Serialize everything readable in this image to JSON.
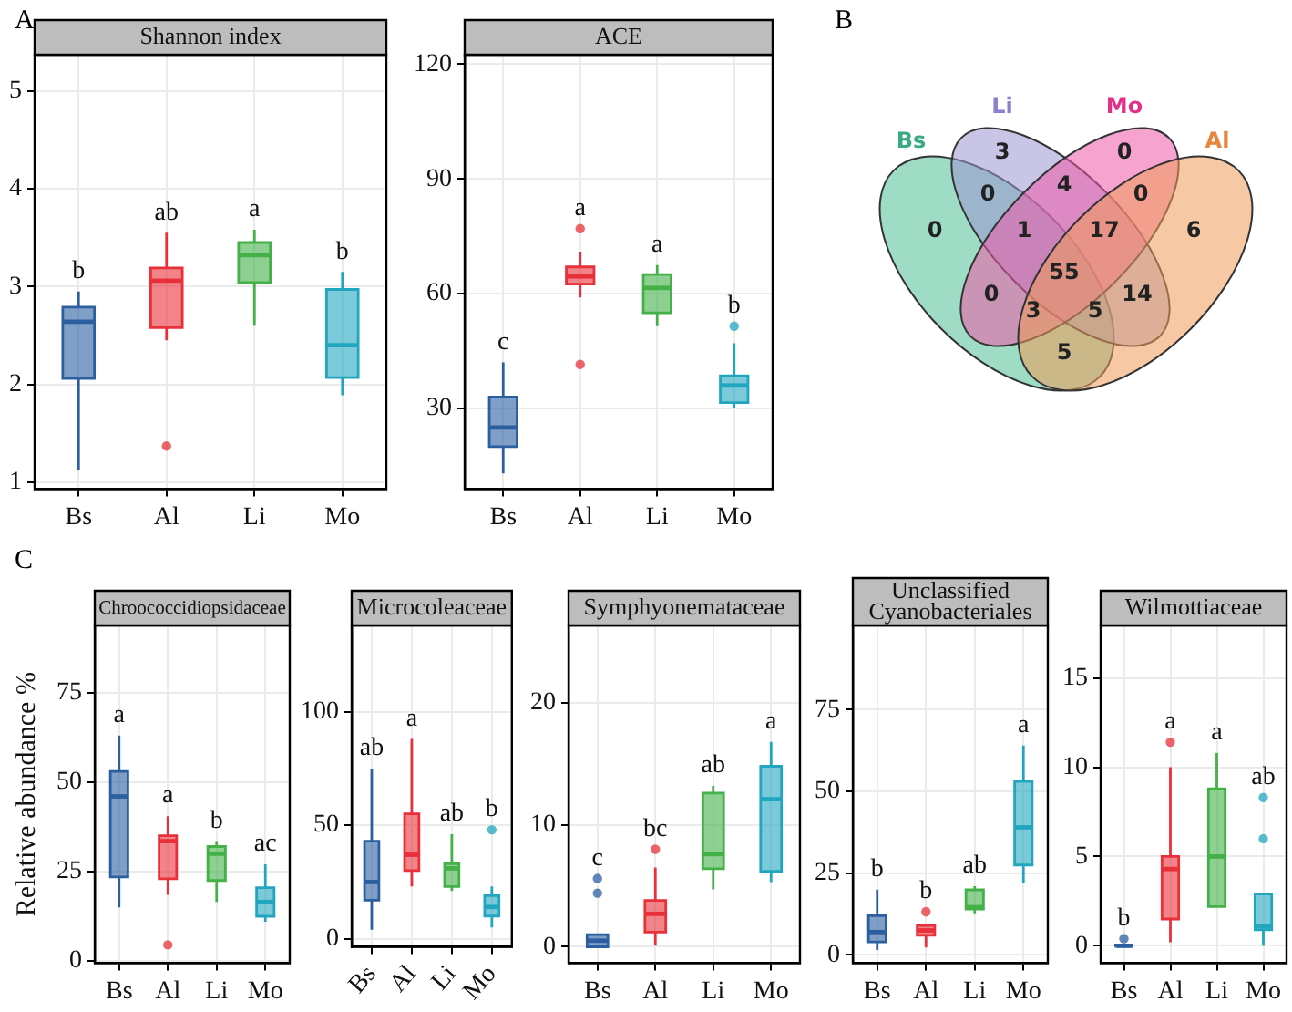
{
  "chart_data": [
    {
      "type": "box",
      "title": "Shannon index",
      "annotations": [
        "A",
        "b",
        "ab",
        "a",
        "b"
      ],
      "categories": [
        "Bs",
        "Al",
        "Li",
        "Mo"
      ],
      "colors": [
        "#2b5fa0",
        "#e8303a",
        "#43b048",
        "#22a6bf"
      ],
      "boxes": [
        {
          "low": 1.13,
          "q1": 2.06,
          "median": 2.64,
          "q3": 2.79,
          "high": 2.95
        },
        {
          "low": 2.45,
          "q1": 2.58,
          "median": 3.06,
          "q3": 3.19,
          "high": 3.55,
          "outliers": [
            1.37
          ]
        },
        {
          "low": 2.6,
          "q1": 3.04,
          "median": 3.32,
          "q3": 3.45,
          "high": 3.58
        },
        {
          "low": 1.89,
          "q1": 2.07,
          "median": 2.4,
          "q3": 2.97,
          "high": 3.15
        }
      ],
      "ylim": [
        0.93,
        5.37
      ],
      "yticks": [
        1,
        2,
        3,
        4,
        5
      ],
      "grid": true
    },
    {
      "type": "box",
      "title": "ACE",
      "annotations": [
        "c",
        "a",
        "a",
        "b"
      ],
      "categories": [
        "Bs",
        "Al",
        "Li",
        "Mo"
      ],
      "colors": [
        "#2b5fa0",
        "#e8303a",
        "#43b048",
        "#22a6bf"
      ],
      "boxes": [
        {
          "low": 13,
          "q1": 20,
          "median": 25,
          "q3": 33,
          "high": 42
        },
        {
          "low": 59,
          "q1": 62.5,
          "median": 64.5,
          "q3": 67,
          "high": 71,
          "outliers": [
            77,
            41.5
          ]
        },
        {
          "low": 51.5,
          "q1": 55,
          "median": 61.5,
          "q3": 65,
          "high": 67.5
        },
        {
          "low": 30,
          "q1": 31.5,
          "median": 36,
          "q3": 38.5,
          "high": 47,
          "outliers": [
            51.5
          ]
        }
      ],
      "ylim": [
        8.9,
        122.5
      ],
      "yticks": [
        30,
        60,
        90,
        120
      ],
      "grid": true
    },
    {
      "type": "other",
      "annotations": [
        "B",
        "Bs",
        "Li",
        "Mo",
        "Al",
        "0",
        "3",
        "0",
        "6",
        "0",
        "4",
        "0",
        "1",
        "17",
        "55",
        "0",
        "3",
        "5",
        "14",
        "5"
      ]
    },
    {
      "type": "box",
      "title": "Chroococcidiopsidaceae",
      "ylabel": "Relative abundance %",
      "annotations": [
        "C",
        "a",
        "a",
        "b",
        "ac"
      ],
      "categories": [
        "Bs",
        "Al",
        "Li",
        "Mo"
      ],
      "colors": [
        "#2b5fa0",
        "#e8303a",
        "#43b048",
        "#22a6bf"
      ],
      "boxes": [
        {
          "low": 15,
          "q1": 23.5,
          "median": 46,
          "q3": 53,
          "high": 63
        },
        {
          "low": 18.5,
          "q1": 23,
          "median": 33.5,
          "q3": 35,
          "high": 40.5,
          "outliers": [
            4.5
          ]
        },
        {
          "low": 16.5,
          "q1": 22.5,
          "median": 30,
          "q3": 32,
          "high": 33.5
        },
        {
          "low": 11,
          "q1": 12.5,
          "median": 16.5,
          "q3": 20.5,
          "high": 27
        }
      ],
      "ylim": [
        -0.6,
        93.8
      ],
      "yticks": [
        0,
        25,
        50,
        75
      ],
      "grid": true
    },
    {
      "type": "box",
      "title": "Microcoleaceae",
      "annotations": [
        "ab",
        "a",
        "ab",
        "b"
      ],
      "categories": [
        "Bs",
        "Al",
        "Li",
        "Mo"
      ],
      "colors": [
        "#2b5fa0",
        "#e8303a",
        "#43b048",
        "#22a6bf"
      ],
      "boxes": [
        {
          "low": 4,
          "q1": 17,
          "median": 25,
          "q3": 43,
          "high": 75
        },
        {
          "low": 23,
          "q1": 30,
          "median": 37,
          "q3": 55,
          "high": 88
        },
        {
          "low": 21,
          "q1": 23,
          "median": 31,
          "q3": 33,
          "high": 46
        },
        {
          "low": 5,
          "q1": 10,
          "median": 14,
          "q3": 19,
          "high": 23,
          "outliers": [
            48
          ]
        }
      ],
      "ylim": [
        -3.6,
        138
      ],
      "yticks": [
        0,
        50,
        100
      ],
      "grid": true
    },
    {
      "type": "box",
      "title": "Symphyonemataceae",
      "annotations": [
        "c",
        "bc",
        "ab",
        "a"
      ],
      "categories": [
        "Bs",
        "Al",
        "Li",
        "Mo"
      ],
      "colors": [
        "#2b5fa0",
        "#e8303a",
        "#43b048",
        "#22a6bf"
      ],
      "boxes": [
        {
          "low": 0,
          "q1": 0,
          "median": 0.5,
          "q3": 1,
          "high": 1,
          "outliers": [
            5.6,
            4.4
          ]
        },
        {
          "low": 0.1,
          "q1": 1.2,
          "median": 2.7,
          "q3": 3.8,
          "high": 6.5,
          "outliers": [
            8
          ]
        },
        {
          "low": 4.7,
          "q1": 6.4,
          "median": 7.6,
          "q3": 12.6,
          "high": 13.2
        },
        {
          "low": 5.3,
          "q1": 6.2,
          "median": 12.1,
          "q3": 14.8,
          "high": 16.8
        }
      ],
      "ylim": [
        -1.34,
        26.35
      ],
      "yticks": [
        0,
        10,
        20
      ],
      "grid": true
    },
    {
      "type": "box",
      "title": "Unclassified Cyanobacteriales",
      "annotations": [
        "b",
        "b",
        "ab",
        "a"
      ],
      "categories": [
        "Bs",
        "Al",
        "Li",
        "Mo"
      ],
      "colors": [
        "#2b5fa0",
        "#e8303a",
        "#43b048",
        "#22a6bf"
      ],
      "boxes": [
        {
          "low": 1.5,
          "q1": 4,
          "median": 7,
          "q3": 12,
          "high": 20
        },
        {
          "low": 2.3,
          "q1": 6,
          "median": 7.5,
          "q3": 9,
          "high": 9,
          "outliers": [
            13.2
          ]
        },
        {
          "low": 12.7,
          "q1": 14,
          "median": 14.6,
          "q3": 19.9,
          "high": 21
        },
        {
          "low": 22,
          "q1": 27.5,
          "median": 39,
          "q3": 53,
          "high": 64
        }
      ],
      "ylim": [
        -2.5,
        100.7
      ],
      "yticks": [
        0,
        25,
        50,
        75
      ],
      "grid": true
    },
    {
      "type": "box",
      "title": "Wilmottiaceae",
      "annotations": [
        "b",
        "a",
        "a",
        "ab"
      ],
      "categories": [
        "Bs",
        "Al",
        "Li",
        "Mo"
      ],
      "colors": [
        "#2b5fa0",
        "#e8303a",
        "#43b048",
        "#22a6bf"
      ],
      "boxes": [
        {
          "low": 0,
          "q1": 0,
          "median": 0,
          "q3": 0.05,
          "high": 0.1,
          "outliers": [
            0.4
          ]
        },
        {
          "low": 0.2,
          "q1": 1.5,
          "median": 4.3,
          "q3": 5,
          "high": 10,
          "outliers": [
            11.4
          ]
        },
        {
          "low": 2.2,
          "q1": 2.2,
          "median": 5,
          "q3": 8.8,
          "high": 10.8
        },
        {
          "low": 0,
          "q1": 0.9,
          "median": 1.1,
          "q3": 2.9,
          "high": 2.9,
          "outliers": [
            6,
            8.3
          ]
        }
      ],
      "ylim": [
        -0.97,
        17.94
      ],
      "yticks": [
        0,
        5,
        10,
        15
      ],
      "grid": true
    }
  ]
}
